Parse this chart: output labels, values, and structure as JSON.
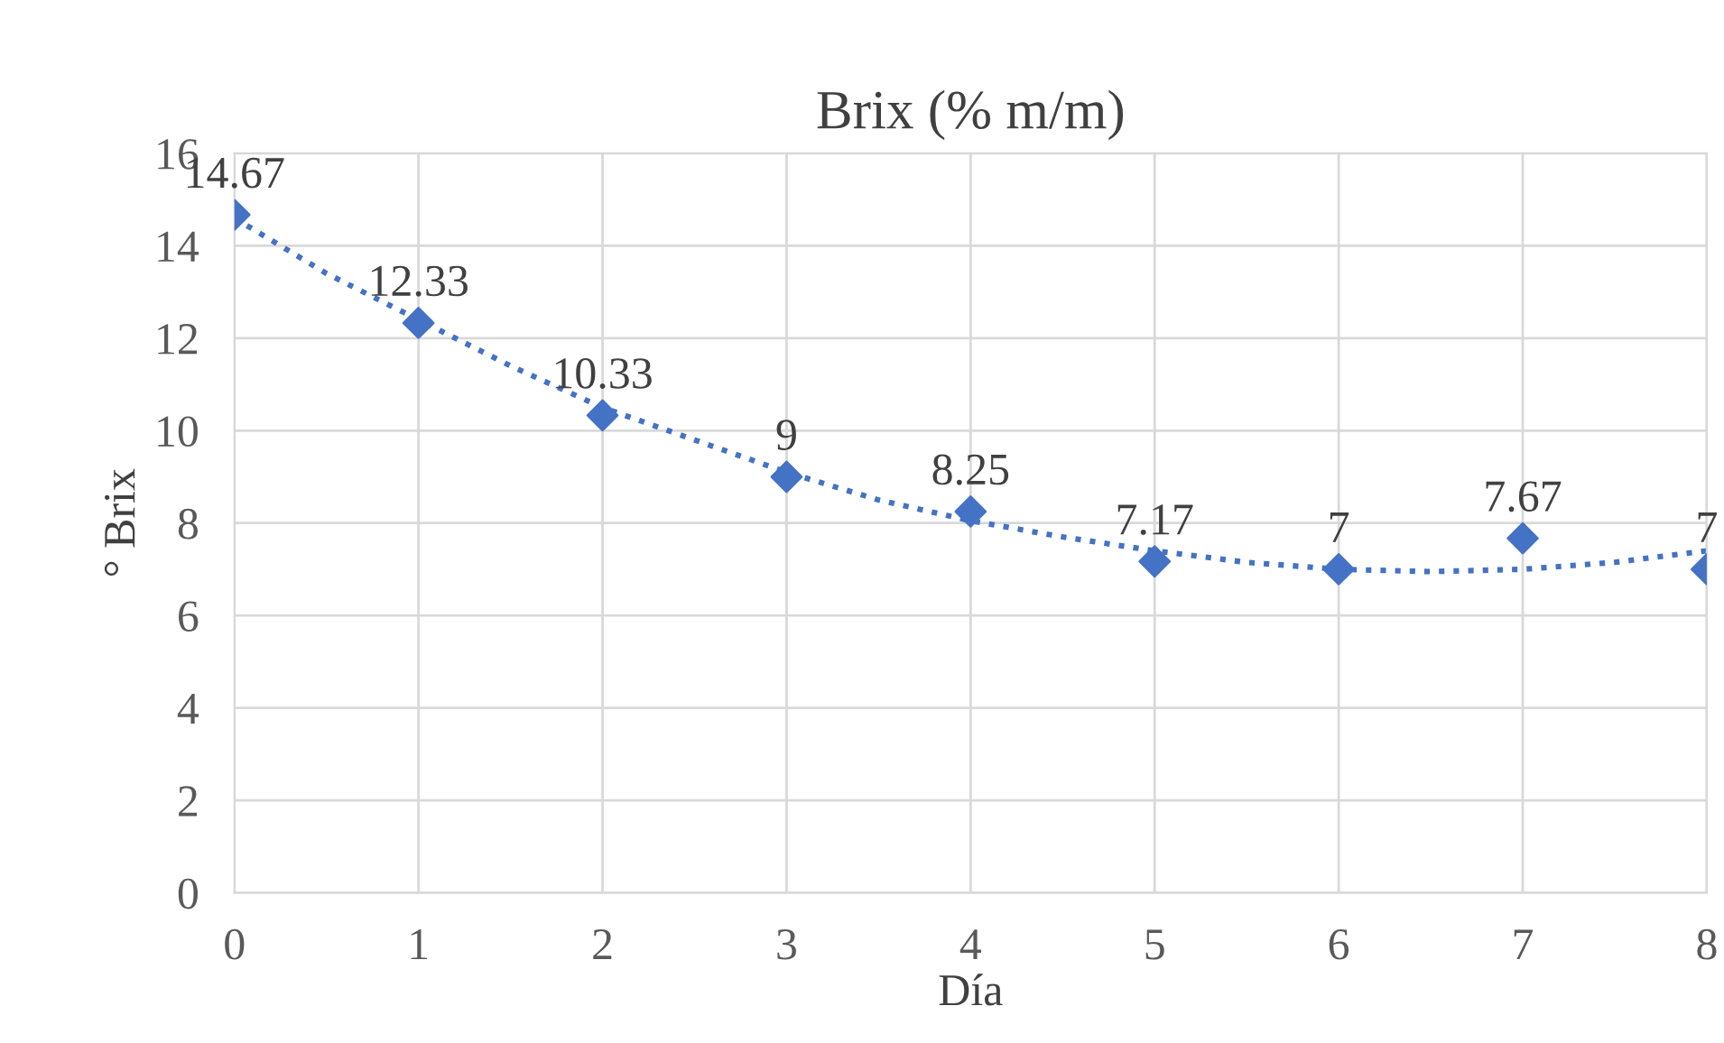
{
  "chart_data": {
    "type": "scatter",
    "title": "Brix (% m/m)",
    "xlabel": "Día",
    "ylabel": "° Brix",
    "x": [
      0,
      1,
      2,
      3,
      4,
      5,
      6,
      7,
      8
    ],
    "series": [
      {
        "color": "#4472c4",
        "values": [
          14.67,
          12.33,
          10.33,
          9,
          8.25,
          7.17,
          7,
          7.67,
          7
        ],
        "value_labels": [
          "14.67",
          "12.33",
          "10.33",
          "9",
          "8.25",
          "7.17",
          "7",
          "7.67",
          "7"
        ],
        "marker": "diamond"
      },
      {
        "type": "line",
        "color": "#4472c4",
        "line_style": "dotted",
        "marker": "none",
        "x": [
          0,
          0.5,
          1,
          1.5,
          2,
          2.5,
          3,
          3.5,
          4,
          4.5,
          5,
          5.5,
          6,
          6.5,
          7,
          7.5,
          8
        ],
        "values": [
          14.6,
          13.4,
          12.4,
          11.4,
          10.5,
          9.8,
          9.1,
          8.5,
          8.05,
          7.7,
          7.4,
          7.15,
          7.0,
          6.95,
          7.0,
          7.15,
          7.4
        ]
      }
    ],
    "xlim": [
      0,
      8
    ],
    "xticks": [
      0,
      1,
      2,
      3,
      4,
      5,
      6,
      7,
      8
    ],
    "ylim": [
      0,
      16
    ],
    "yticks": [
      0,
      2,
      4,
      6,
      8,
      10,
      12,
      14,
      16
    ],
    "grid": true,
    "legend": false
  }
}
